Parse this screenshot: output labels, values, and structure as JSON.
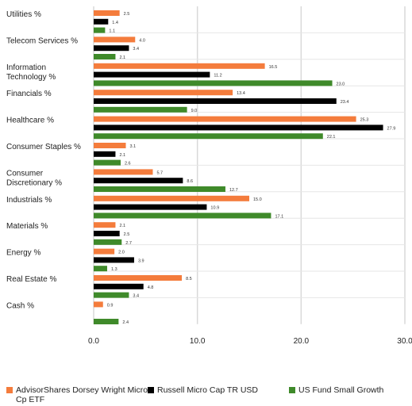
{
  "chart_data": {
    "type": "bar",
    "orientation": "horizontal",
    "categories": [
      "Utilities %",
      "Telecom Services %",
      "Information Technology %",
      "Financials %",
      "Healthcare %",
      "Consumer Staples %",
      "Consumer Discretionary %",
      "Industrials %",
      "Materials %",
      "Energy %",
      "Real Estate %",
      "Cash %"
    ],
    "series": [
      {
        "name": "AdvisorShares Dorsey Wright Micro-Cp ETF",
        "color": "#f47c3c",
        "values": [
          2.5,
          4.0,
          16.5,
          13.4,
          25.3,
          3.1,
          5.7,
          15.0,
          2.1,
          2.0,
          8.5,
          0.9
        ],
        "labels": [
          "2.5",
          "4.0",
          "16.5",
          "13.4",
          "25.3",
          "3.1",
          "5.7",
          "15.0",
          "2.1",
          "2.0",
          "8.5",
          "0.9"
        ]
      },
      {
        "name": "Russell Micro Cap TR USD",
        "color": "#000000",
        "values": [
          1.4,
          3.4,
          11.2,
          23.4,
          27.9,
          2.1,
          8.6,
          10.9,
          2.5,
          3.9,
          4.8,
          null
        ],
        "labels": [
          "1.4",
          "3.4",
          "11.2",
          "23.4",
          "27.9",
          "2.1",
          "8.6",
          "10.9",
          "2.5",
          "3.9",
          "4.8",
          ""
        ]
      },
      {
        "name": "US Fund Small Growth",
        "color": "#3f8a2a",
        "values": [
          1.1,
          2.1,
          23.0,
          9.0,
          22.1,
          2.6,
          12.7,
          17.1,
          2.7,
          1.3,
          3.4,
          2.4
        ],
        "labels": [
          "1.1",
          "2.1",
          "23.0",
          "9.0",
          "22.1",
          "2.6",
          "12.7",
          "17.1",
          "2.7",
          "1.3",
          "3.4",
          "2.4"
        ]
      }
    ],
    "xlim": [
      0,
      30
    ],
    "ticks": [
      0,
      10,
      20,
      30
    ],
    "tick_labels": [
      "0.0",
      "10.0",
      "20.0",
      "30.0"
    ],
    "grid": true,
    "legend_position": "bottom"
  }
}
